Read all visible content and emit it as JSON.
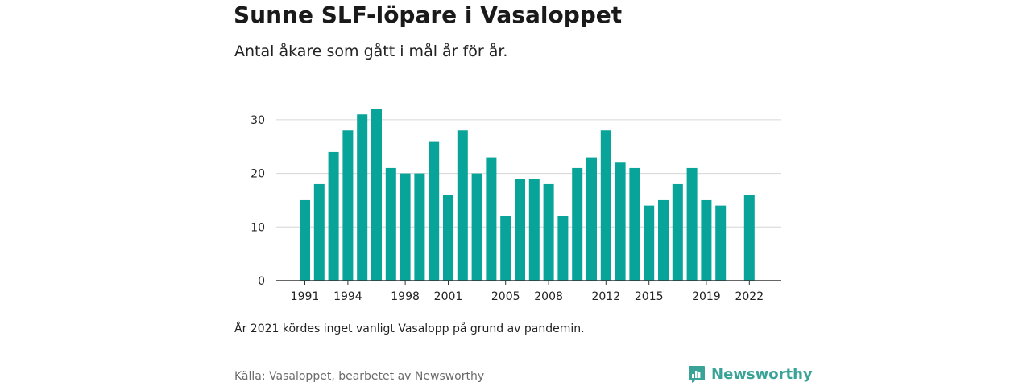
{
  "title": "Sunne SLF-löpare i Vasaloppet",
  "subtitle": "Antal åkare som gått i mål år för år.",
  "note": "År 2021 kördes inget vanligt Vasalopp på grund av pandemin.",
  "source": "Källa: Vasaloppet, bearbetet av Newsworthy",
  "brand": {
    "name": "Newsworthy",
    "color": "#3aa398",
    "icon": "newsworthy-logo-icon"
  },
  "chart_data": {
    "type": "bar",
    "title": "",
    "xlabel": "",
    "ylabel": "",
    "bar_color": "#08a399",
    "grid": true,
    "ylim": [
      0,
      33
    ],
    "y_ticks": [
      0,
      10,
      20,
      30
    ],
    "x_tick_labels": [
      1991,
      1994,
      1998,
      2001,
      2005,
      2008,
      2012,
      2015,
      2019,
      2022
    ],
    "categories": [
      1991,
      1992,
      1993,
      1994,
      1995,
      1996,
      1997,
      1998,
      1999,
      2000,
      2001,
      2002,
      2003,
      2004,
      2005,
      2006,
      2007,
      2008,
      2009,
      2010,
      2011,
      2012,
      2013,
      2014,
      2015,
      2016,
      2017,
      2018,
      2019,
      2020,
      2021,
      2022
    ],
    "values": [
      15,
      18,
      24,
      28,
      31,
      32,
      21,
      20,
      20,
      26,
      16,
      28,
      20,
      23,
      12,
      19,
      19,
      18,
      12,
      21,
      23,
      28,
      22,
      21,
      14,
      15,
      18,
      21,
      15,
      14,
      null,
      16
    ]
  }
}
